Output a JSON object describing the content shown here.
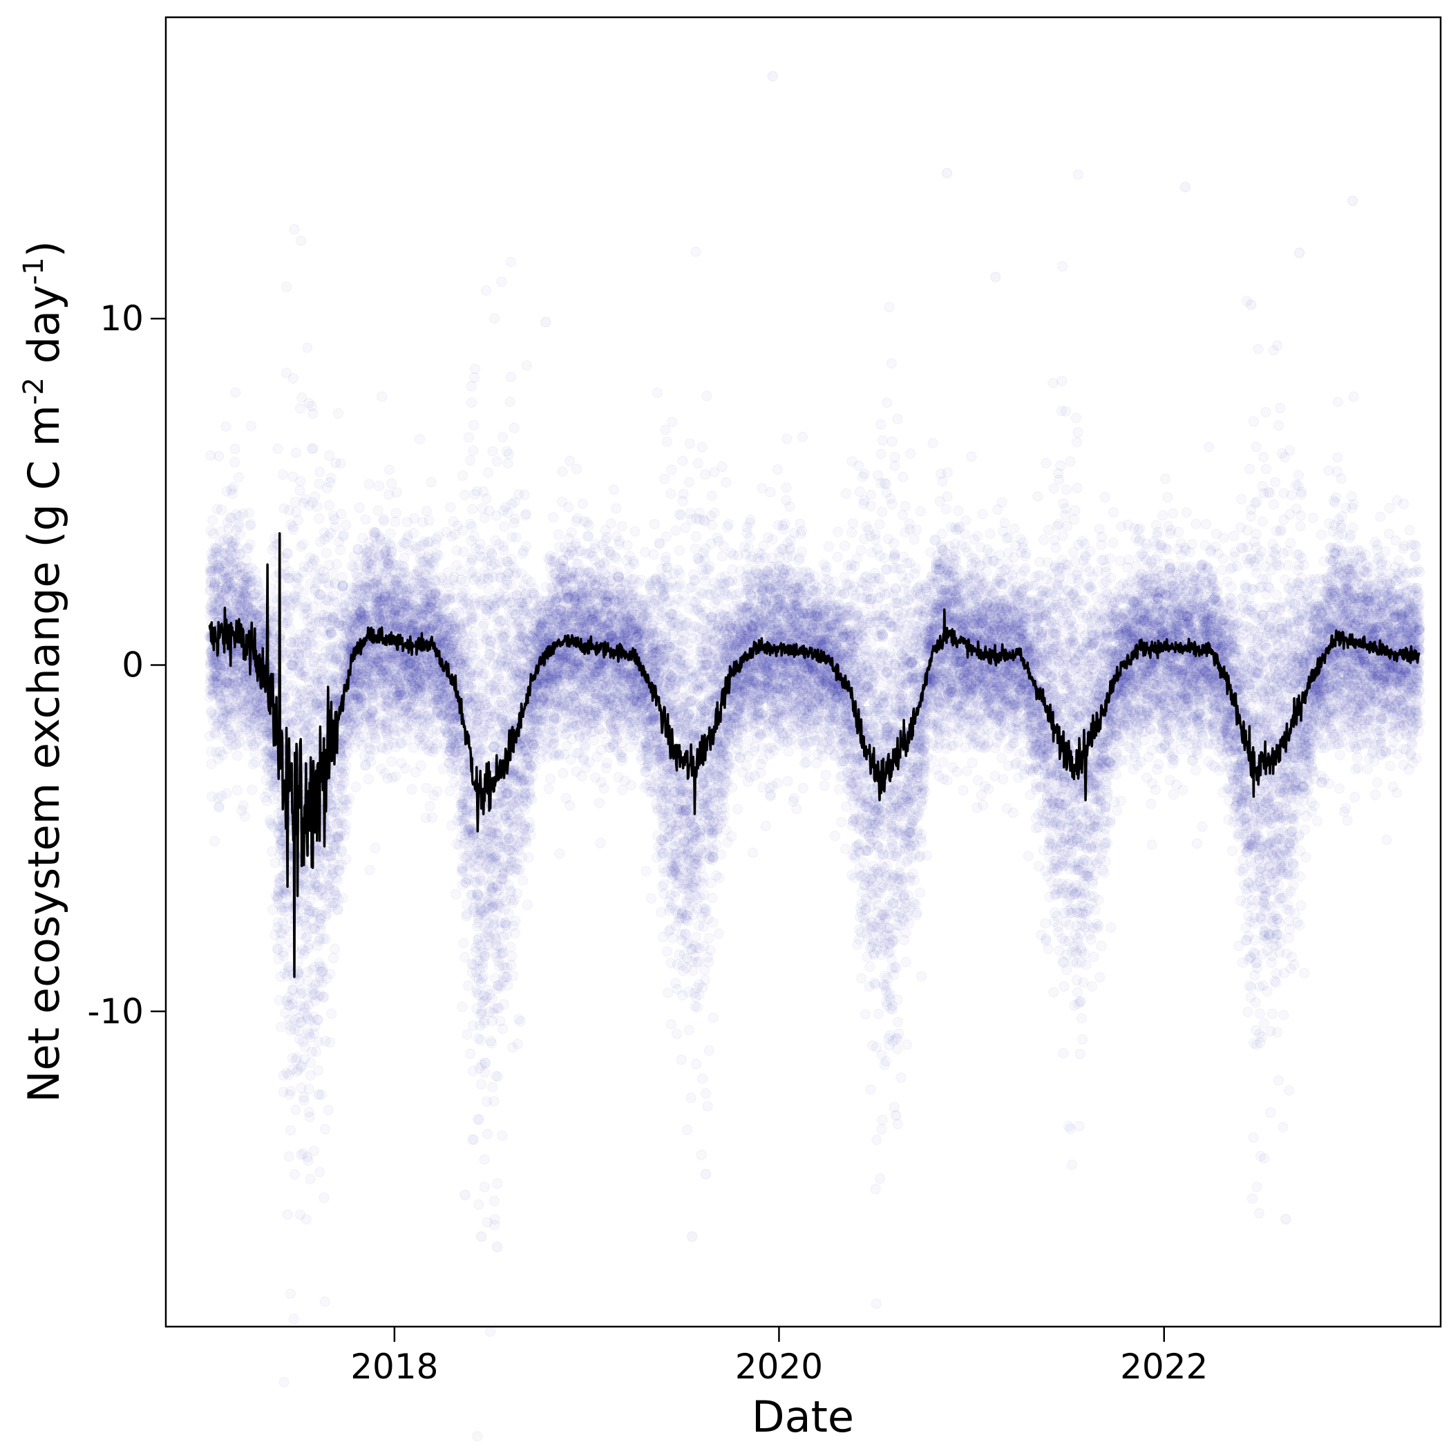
{
  "chart_data": {
    "type": "scatter",
    "xlabel": "Date",
    "ylabel_main": "Net ecosystem exchange (g C m",
    "ylabel_sup1": "-2",
    "ylabel_mid": " day",
    "ylabel_sup2": "-1",
    "ylabel_end": ")",
    "xlim": [
      "2016-10-24",
      "2023-06-10"
    ],
    "ylim": [
      -19.1,
      18.7
    ],
    "x_ticks": [
      {
        "date": "2018-01-01",
        "label": "2018"
      },
      {
        "date": "2020-01-01",
        "label": "2020"
      },
      {
        "date": "2022-01-01",
        "label": "2022"
      }
    ],
    "y_ticks": [
      {
        "value": 10,
        "label": "10"
      },
      {
        "value": 0,
        "label": "0"
      },
      {
        "value": -10,
        "label": "-10"
      }
    ],
    "grid": false,
    "legend": "none",
    "colors": {
      "points": "#1f1fa0",
      "line": "#000000"
    },
    "date_range": [
      "2017-01-15",
      "2023-05-01"
    ],
    "daily_mean_keypoints": [
      {
        "date": "2017-01-15",
        "value": 0.8
      },
      {
        "date": "2017-03-01",
        "value": 0.9
      },
      {
        "date": "2017-04-15",
        "value": 0.3
      },
      {
        "date": "2017-05-15",
        "value": -1.0
      },
      {
        "date": "2017-06-10",
        "value": -4.0
      },
      {
        "date": "2017-07-10",
        "value": -4.0
      },
      {
        "date": "2017-08-10",
        "value": -3.5
      },
      {
        "date": "2017-09-10",
        "value": -2.0
      },
      {
        "date": "2017-10-15",
        "value": 0.3
      },
      {
        "date": "2017-11-15",
        "value": 0.9
      },
      {
        "date": "2018-01-15",
        "value": 0.6
      },
      {
        "date": "2018-03-15",
        "value": 0.6
      },
      {
        "date": "2018-05-01",
        "value": -0.8
      },
      {
        "date": "2018-06-10",
        "value": -3.8
      },
      {
        "date": "2018-07-15",
        "value": -3.3
      },
      {
        "date": "2018-08-20",
        "value": -2.0
      },
      {
        "date": "2018-10-01",
        "value": 0.0
      },
      {
        "date": "2018-11-15",
        "value": 0.7
      },
      {
        "date": "2019-01-15",
        "value": 0.5
      },
      {
        "date": "2019-04-01",
        "value": 0.3
      },
      {
        "date": "2019-05-10",
        "value": -0.8
      },
      {
        "date": "2019-06-15",
        "value": -2.5
      },
      {
        "date": "2019-07-20",
        "value": -3.0
      },
      {
        "date": "2019-08-25",
        "value": -2.0
      },
      {
        "date": "2019-10-01",
        "value": -0.3
      },
      {
        "date": "2019-11-15",
        "value": 0.5
      },
      {
        "date": "2020-01-15",
        "value": 0.5
      },
      {
        "date": "2020-04-01",
        "value": 0.2
      },
      {
        "date": "2020-05-10",
        "value": -0.6
      },
      {
        "date": "2020-06-15",
        "value": -2.5
      },
      {
        "date": "2020-07-15",
        "value": -3.3
      },
      {
        "date": "2020-08-15",
        "value": -2.6
      },
      {
        "date": "2020-09-20",
        "value": -1.4
      },
      {
        "date": "2020-10-20",
        "value": 0.5
      },
      {
        "date": "2020-11-20",
        "value": 0.9
      },
      {
        "date": "2021-01-15",
        "value": 0.3
      },
      {
        "date": "2021-04-01",
        "value": 0.3
      },
      {
        "date": "2021-05-10",
        "value": -0.8
      },
      {
        "date": "2021-06-15",
        "value": -2.2
      },
      {
        "date": "2021-07-20",
        "value": -2.8
      },
      {
        "date": "2021-08-25",
        "value": -1.8
      },
      {
        "date": "2021-10-01",
        "value": -0.3
      },
      {
        "date": "2021-11-15",
        "value": 0.5
      },
      {
        "date": "2022-01-15",
        "value": 0.5
      },
      {
        "date": "2022-04-01",
        "value": 0.4
      },
      {
        "date": "2022-05-15",
        "value": -1.0
      },
      {
        "date": "2022-06-20",
        "value": -3.0
      },
      {
        "date": "2022-07-25",
        "value": -2.8
      },
      {
        "date": "2022-08-25",
        "value": -2.0
      },
      {
        "date": "2022-10-01",
        "value": -0.6
      },
      {
        "date": "2022-11-20",
        "value": 0.8
      },
      {
        "date": "2023-01-15",
        "value": 0.6
      },
      {
        "date": "2023-03-15",
        "value": 0.3
      },
      {
        "date": "2023-05-01",
        "value": 0.3
      }
    ],
    "daily_mean_spikes": [
      {
        "date": "2017-05-05",
        "value": 2.9
      },
      {
        "date": "2017-05-28",
        "value": 3.8
      },
      {
        "date": "2017-06-12",
        "value": -6.4
      },
      {
        "date": "2017-06-25",
        "value": -9.0
      },
      {
        "date": "2017-07-20",
        "value": -5.5
      },
      {
        "date": "2018-06-08",
        "value": -4.8
      },
      {
        "date": "2019-07-25",
        "value": -4.3
      },
      {
        "date": "2020-07-10",
        "value": -3.9
      },
      {
        "date": "2020-11-10",
        "value": 1.6
      },
      {
        "date": "2021-08-05",
        "value": -3.9
      },
      {
        "date": "2022-06-20",
        "value": -3.8
      }
    ],
    "scatter_outliers": [
      {
        "date": "2019-12-20",
        "value": 17.0
      },
      {
        "date": "2020-11-15",
        "value": 14.2
      },
      {
        "date": "2022-02-10",
        "value": 13.8
      },
      {
        "date": "2022-12-25",
        "value": 13.4
      },
      {
        "date": "2022-09-15",
        "value": 11.9
      },
      {
        "date": "2021-02-15",
        "value": 11.2
      },
      {
        "date": "2022-06-15",
        "value": 10.4
      },
      {
        "date": "2018-10-15",
        "value": 9.9
      },
      {
        "date": "2018-07-15",
        "value": -16.8
      },
      {
        "date": "2018-06-15",
        "value": -16.5
      },
      {
        "date": "2019-07-20",
        "value": -16.5
      },
      {
        "date": "2022-08-20",
        "value": -16.0
      },
      {
        "date": "2018-05-15",
        "value": -15.3
      },
      {
        "date": "2017-08-10",
        "value": -12.4
      },
      {
        "date": "2020-08-10",
        "value": -13.0
      },
      {
        "date": "2019-08-15",
        "value": -14.7
      }
    ]
  }
}
